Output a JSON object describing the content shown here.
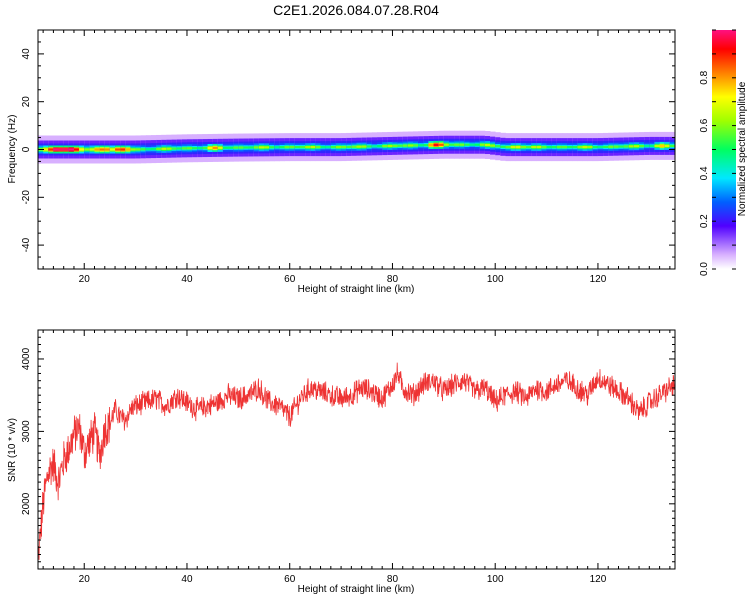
{
  "title": "C2E1.2026.084.07.28.R04",
  "chart_data": [
    {
      "type": "heatmap",
      "xlabel": "Height of straight line (km)",
      "ylabel": "Frequency (Hz)",
      "xlim": [
        11,
        135
      ],
      "ylim": [
        -50,
        50
      ],
      "xticks": [
        20,
        40,
        60,
        80,
        100,
        120
      ],
      "yticks": [
        -40,
        -20,
        0,
        20,
        40
      ],
      "colorbar": {
        "label": "Normalized spectral amplitude",
        "range": [
          0,
          1
        ],
        "ticks": [
          "0.0",
          "0.2",
          "0.4",
          "0.6",
          "0.8"
        ],
        "colormap": [
          "#ffffff",
          "#a040ff",
          "#0000ff",
          "#00ffff",
          "#00ff00",
          "#ffff00",
          "#ff8000",
          "#ff0000",
          "#ff00a0"
        ]
      },
      "ridge_frequency": [
        {
          "x": 11,
          "f": 0
        },
        {
          "x": 20,
          "f": 0
        },
        {
          "x": 30,
          "f": 0
        },
        {
          "x": 40,
          "f": 0.5
        },
        {
          "x": 50,
          "f": 0.8
        },
        {
          "x": 60,
          "f": 1
        },
        {
          "x": 70,
          "f": 1
        },
        {
          "x": 80,
          "f": 1.5
        },
        {
          "x": 90,
          "f": 2
        },
        {
          "x": 98,
          "f": 2
        },
        {
          "x": 102,
          "f": 1
        },
        {
          "x": 110,
          "f": 1
        },
        {
          "x": 120,
          "f": 1
        },
        {
          "x": 130,
          "f": 1.5
        },
        {
          "x": 135,
          "f": 1.5
        }
      ],
      "ridge_peaks": [
        {
          "x": 14,
          "f": -1,
          "amplitude": 0.95
        },
        {
          "x": 17,
          "f": 0,
          "amplitude": 0.9
        },
        {
          "x": 23,
          "f": 0,
          "amplitude": 0.8
        },
        {
          "x": 27,
          "f": 0,
          "amplitude": 0.75
        },
        {
          "x": 45,
          "f": 0.5,
          "amplitude": 0.6
        },
        {
          "x": 88,
          "f": 2,
          "amplitude": 0.75
        },
        {
          "x": 104,
          "f": 1,
          "amplitude": 0.6
        },
        {
          "x": 132,
          "f": 1.5,
          "amplitude": 0.6
        }
      ]
    },
    {
      "type": "line",
      "xlabel": "Height of straight line (km)",
      "ylabel": "SNR (10 * v/v)",
      "xlim": [
        11,
        135
      ],
      "ylim": [
        1100,
        4400
      ],
      "xticks": [
        20,
        40,
        60,
        80,
        100,
        120
      ],
      "yticks": [
        2000,
        3000,
        4000
      ],
      "series": [
        {
          "color": "#ee3333",
          "x": [
            11,
            12,
            13,
            14,
            15,
            16,
            17,
            18,
            19,
            20,
            21,
            22,
            23,
            24,
            25,
            26,
            27,
            28,
            29,
            30,
            32,
            34,
            36,
            38,
            40,
            42,
            44,
            46,
            48,
            50,
            52,
            54,
            56,
            58,
            60,
            62,
            64,
            66,
            68,
            70,
            72,
            74,
            76,
            78,
            80,
            81,
            82,
            84,
            86,
            88,
            90,
            92,
            94,
            96,
            98,
            100,
            102,
            104,
            106,
            108,
            110,
            112,
            114,
            116,
            118,
            120,
            122,
            124,
            126,
            128,
            130,
            132,
            134,
            135
          ],
          "values": [
            1200,
            2000,
            2450,
            2550,
            2300,
            2600,
            2750,
            2950,
            3050,
            2700,
            2850,
            3000,
            2650,
            3050,
            3100,
            3300,
            3200,
            3150,
            3300,
            3350,
            3400,
            3450,
            3350,
            3500,
            3400,
            3300,
            3350,
            3400,
            3500,
            3450,
            3500,
            3600,
            3400,
            3350,
            3200,
            3450,
            3600,
            3550,
            3500,
            3450,
            3500,
            3600,
            3550,
            3450,
            3650,
            3800,
            3600,
            3500,
            3650,
            3700,
            3550,
            3650,
            3700,
            3550,
            3600,
            3400,
            3500,
            3550,
            3450,
            3600,
            3550,
            3650,
            3700,
            3600,
            3500,
            3750,
            3650,
            3550,
            3450,
            3250,
            3400,
            3500,
            3600,
            3650
          ]
        }
      ]
    }
  ]
}
